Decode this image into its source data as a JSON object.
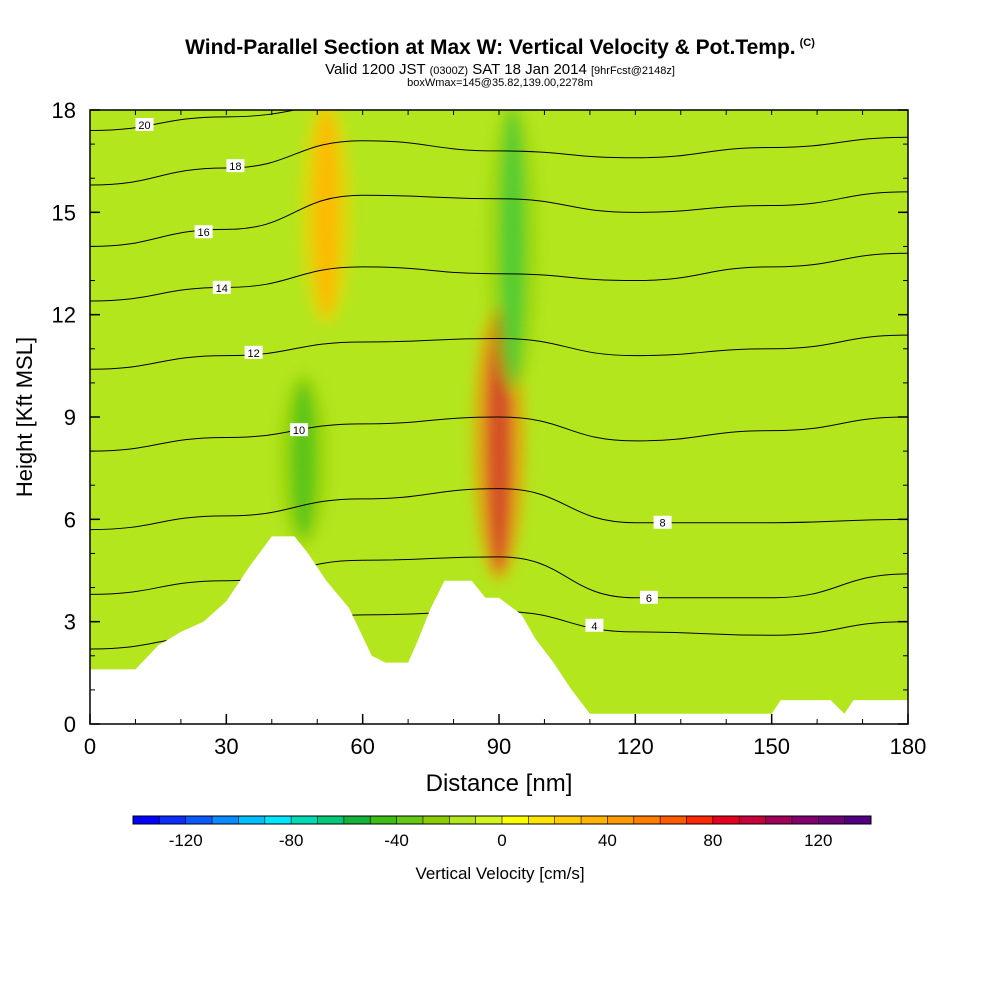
{
  "title": {
    "main": "Wind-Parallel Section at Max W: Vertical Velocity & Pot.Temp.",
    "copyright": "(C)",
    "valid_prefix": "Valid 1200 JST",
    "valid_utc": "(0300Z)",
    "valid_date": "SAT 18 Jan 2014",
    "forecast": "[9hrFcst@2148z]",
    "box_info": "boxWmax=145@35.82,139.00,2278m"
  },
  "chart_data": {
    "type": "heatmap",
    "xlabel": "Distance [nm]",
    "ylabel": "Height [Kft MSL]",
    "xlim": [
      0,
      180
    ],
    "ylim": [
      0,
      18
    ],
    "x_ticks": [
      "0",
      "30",
      "60",
      "90",
      "120",
      "150",
      "180"
    ],
    "y_ticks": [
      "0",
      "3",
      "6",
      "9",
      "12",
      "15",
      "18"
    ],
    "fields": {
      "shaded": "Vertical Velocity [cm/s]",
      "contoured": "Potential Temperature"
    },
    "max_w_cm_s": 145,
    "features": [
      {
        "label": "updraft",
        "x_nm": 90,
        "height_kft_range": [
          4.5,
          12
        ],
        "w_max_cm_s": 100
      },
      {
        "label": "downdraft",
        "x_nm": 93,
        "height_kft_range": [
          10,
          18
        ],
        "w_min_cm_s": -70
      },
      {
        "label": "downdraft",
        "x_nm": 47,
        "height_kft_range": [
          5.5,
          10
        ],
        "w_min_cm_s": -60
      },
      {
        "label": "updraft",
        "x_nm": 52,
        "height_kft_range": [
          12,
          18
        ],
        "w_max_cm_s": 40
      }
    ],
    "terrain": [
      [
        0,
        1.6
      ],
      [
        10,
        1.6
      ],
      [
        15,
        2.3
      ],
      [
        20,
        2.7
      ],
      [
        25,
        3.0
      ],
      [
        30,
        3.6
      ],
      [
        35,
        4.6
      ],
      [
        40,
        5.5
      ],
      [
        45,
        5.5
      ],
      [
        48,
        5.0
      ],
      [
        52,
        4.2
      ],
      [
        57,
        3.4
      ],
      [
        62,
        2.0
      ],
      [
        65,
        1.8
      ],
      [
        70,
        1.8
      ],
      [
        72,
        2.4
      ],
      [
        75,
        3.4
      ],
      [
        78,
        4.2
      ],
      [
        84,
        4.2
      ],
      [
        87,
        3.7
      ],
      [
        90,
        3.7
      ],
      [
        95,
        3.2
      ],
      [
        98,
        2.5
      ],
      [
        102,
        1.8
      ],
      [
        106,
        1.0
      ],
      [
        110,
        0.3
      ],
      [
        150,
        0.3
      ],
      [
        152,
        0.7
      ],
      [
        163,
        0.7
      ],
      [
        166,
        0.3
      ],
      [
        168,
        0.7
      ],
      [
        180,
        0.7
      ]
    ],
    "theta_contours": [
      {
        "label": "20",
        "y": [
          17.4,
          17.8,
          18.2,
          18.1,
          18.0,
          18.0,
          18.0
        ],
        "label_x": 12
      },
      {
        "label": "18",
        "y": [
          15.8,
          16.3,
          17.1,
          16.8,
          16.6,
          16.9,
          17.2
        ],
        "label_x": 32
      },
      {
        "label": "16",
        "y": [
          14.0,
          14.5,
          15.5,
          15.4,
          15.0,
          15.2,
          15.6
        ],
        "label_x": 25
      },
      {
        "label": "14",
        "y": [
          12.4,
          12.8,
          13.4,
          13.2,
          13.0,
          13.4,
          13.8
        ],
        "label_x": 29
      },
      {
        "label": "12",
        "y": [
          10.4,
          10.8,
          11.2,
          11.3,
          10.8,
          11.0,
          11.4
        ],
        "label_x": 36
      },
      {
        "label": "10",
        "y": [
          8.0,
          8.4,
          8.8,
          9.0,
          8.3,
          8.6,
          9.0
        ],
        "label_x": 46
      },
      {
        "label": "8",
        "y": [
          5.7,
          6.1,
          6.6,
          6.9,
          5.9,
          5.9,
          6.0
        ],
        "label_x": 126
      },
      {
        "label": "6",
        "y": [
          3.8,
          4.2,
          4.8,
          4.9,
          3.7,
          3.7,
          4.4
        ],
        "label_x": 123
      },
      {
        "label": "4",
        "y": [
          2.2,
          2.6,
          3.2,
          3.3,
          2.7,
          2.6,
          3.0
        ],
        "label_x": 111
      }
    ]
  },
  "colorbar": {
    "label": "Vertical Velocity [cm/s]",
    "tick_labels": [
      "-120",
      "-80",
      "-40",
      "0",
      "40",
      "80",
      "120"
    ],
    "colors": [
      "#0000ff",
      "#0a2dff",
      "#0a5aff",
      "#0a8cff",
      "#00bfff",
      "#00e6ff",
      "#00dbb4",
      "#00c878",
      "#14b43c",
      "#3cbe14",
      "#64c814",
      "#8ccd00",
      "#b4e61e",
      "#d2f51e",
      "#ffff00",
      "#ffe600",
      "#ffcd00",
      "#ffb400",
      "#ff9b00",
      "#ff7d00",
      "#ff5a00",
      "#ff2800",
      "#e6001e",
      "#c8003c",
      "#a0005a",
      "#82006e",
      "#6e0078",
      "#500082"
    ]
  }
}
